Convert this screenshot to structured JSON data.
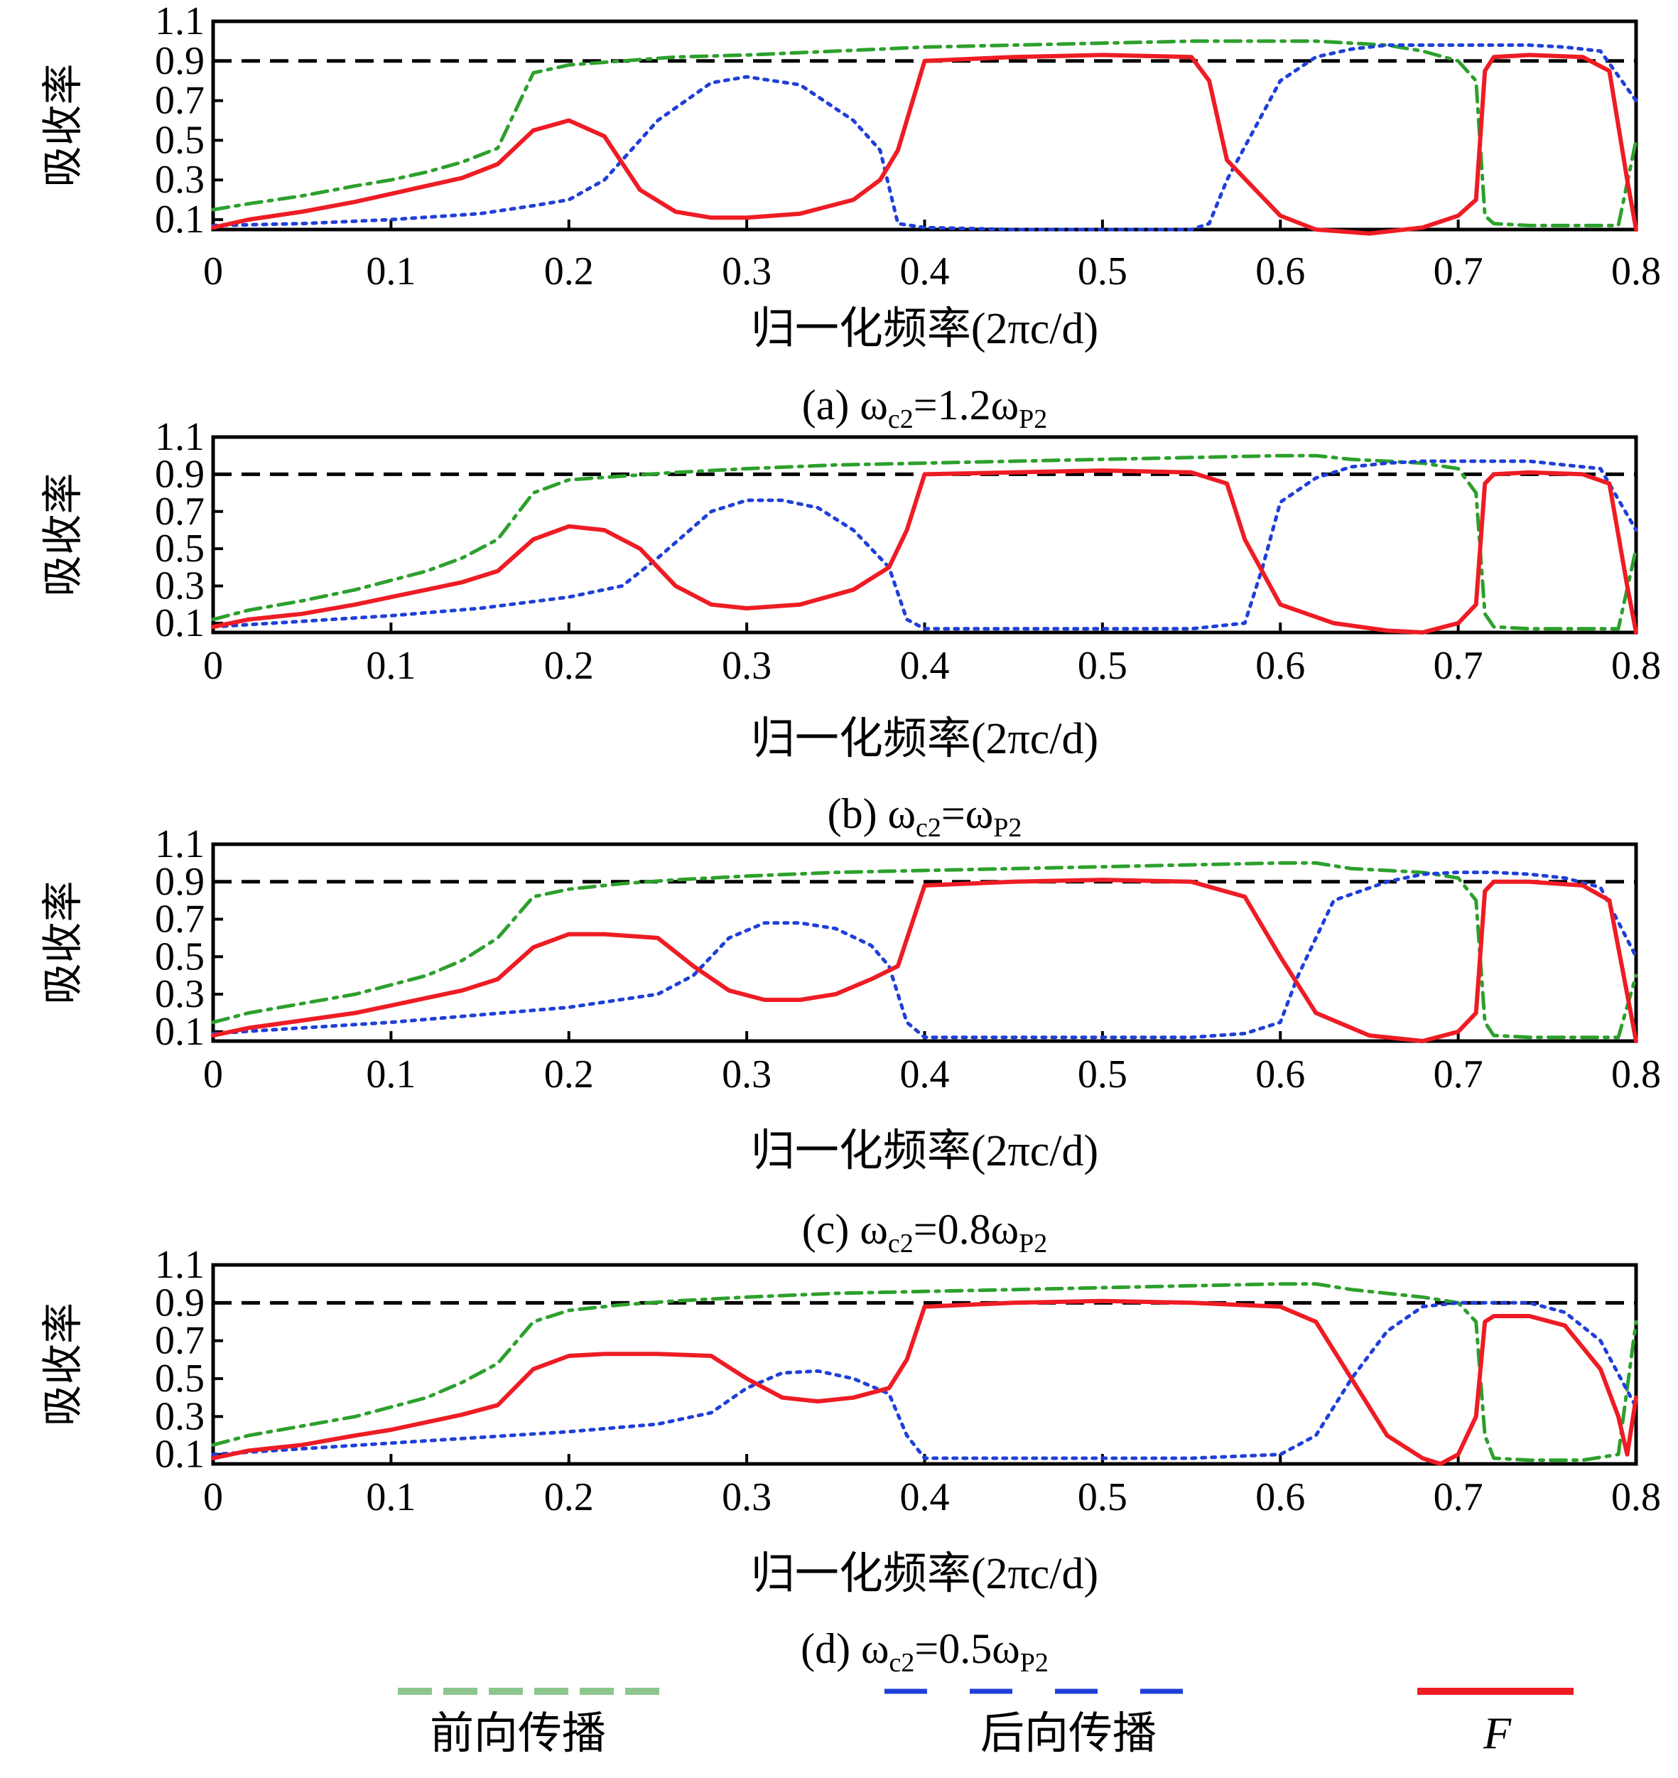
{
  "colors": {
    "forward": "#2ca02c",
    "backward": "#1f3fd8",
    "F": "#ee1c24",
    "reference": "#000000",
    "legend_forward": "#8cc68c",
    "legend_backward": "#1f3fd8",
    "legend_F": "#ee1c24"
  },
  "legend": {
    "forward_label": "前向传播",
    "backward_label": "后向传播",
    "F_label": "F"
  },
  "chart_data": [
    {
      "type": "line",
      "caption": "(a) ωc2=1.2ωP2",
      "caption_parts": {
        "prefix": "(a) ω",
        "sub1": "c2",
        "mid": "=1.2ω",
        "sub2": "P2"
      },
      "xlabel": "归一化频率(2πc/d)",
      "ylabel": "吸收率",
      "xlim": [
        0,
        0.8
      ],
      "ylim": [
        0.05,
        1.1
      ],
      "xticks": [
        "0",
        "0.1",
        "0.2",
        "0.3",
        "0.4",
        "0.5",
        "0.6",
        "0.7",
        "0.8"
      ],
      "yticks": [
        "0.1",
        "0.3",
        "0.5",
        "0.7",
        "0.9",
        "1.1"
      ],
      "reference_y": 0.9,
      "series": [
        {
          "name": "前向传播",
          "style": "dashdot",
          "color_key": "forward",
          "x": [
            0,
            0.02,
            0.05,
            0.08,
            0.1,
            0.12,
            0.14,
            0.16,
            0.18,
            0.2,
            0.23,
            0.26,
            0.3,
            0.35,
            0.4,
            0.45,
            0.5,
            0.55,
            0.6,
            0.62,
            0.64,
            0.66,
            0.68,
            0.7,
            0.71,
            0.715,
            0.72,
            0.74,
            0.77,
            0.79,
            0.8
          ],
          "y": [
            0.15,
            0.18,
            0.22,
            0.27,
            0.3,
            0.34,
            0.39,
            0.46,
            0.84,
            0.88,
            0.9,
            0.92,
            0.93,
            0.95,
            0.97,
            0.98,
            0.99,
            1.0,
            1.0,
            1.0,
            0.99,
            0.98,
            0.95,
            0.9,
            0.8,
            0.12,
            0.08,
            0.07,
            0.07,
            0.07,
            0.5
          ]
        },
        {
          "name": "后向传播",
          "style": "dotted",
          "color_key": "backward",
          "x": [
            0,
            0.05,
            0.1,
            0.15,
            0.18,
            0.2,
            0.22,
            0.25,
            0.28,
            0.3,
            0.33,
            0.36,
            0.375,
            0.385,
            0.4,
            0.45,
            0.5,
            0.55,
            0.56,
            0.57,
            0.6,
            0.62,
            0.64,
            0.66,
            0.68,
            0.7,
            0.72,
            0.74,
            0.76,
            0.78,
            0.8
          ],
          "y": [
            0.07,
            0.08,
            0.1,
            0.13,
            0.17,
            0.2,
            0.3,
            0.6,
            0.79,
            0.82,
            0.78,
            0.6,
            0.45,
            0.08,
            0.06,
            0.05,
            0.05,
            0.05,
            0.08,
            0.3,
            0.8,
            0.92,
            0.96,
            0.98,
            0.98,
            0.98,
            0.98,
            0.98,
            0.97,
            0.95,
            0.7
          ]
        },
        {
          "name": "F",
          "style": "solid",
          "color_key": "F",
          "x": [
            0,
            0.02,
            0.05,
            0.08,
            0.1,
            0.12,
            0.14,
            0.16,
            0.18,
            0.2,
            0.22,
            0.24,
            0.26,
            0.28,
            0.3,
            0.33,
            0.36,
            0.375,
            0.385,
            0.4,
            0.45,
            0.5,
            0.55,
            0.56,
            0.57,
            0.6,
            0.62,
            0.65,
            0.68,
            0.7,
            0.71,
            0.715,
            0.72,
            0.74,
            0.77,
            0.785,
            0.795,
            0.8
          ],
          "y": [
            0.06,
            0.1,
            0.14,
            0.19,
            0.23,
            0.27,
            0.31,
            0.38,
            0.55,
            0.6,
            0.52,
            0.25,
            0.14,
            0.11,
            0.11,
            0.13,
            0.2,
            0.3,
            0.45,
            0.9,
            0.92,
            0.93,
            0.92,
            0.8,
            0.4,
            0.12,
            0.05,
            0.03,
            0.06,
            0.12,
            0.2,
            0.85,
            0.92,
            0.93,
            0.92,
            0.85,
            0.3,
            0.05
          ]
        }
      ]
    },
    {
      "type": "line",
      "caption": "(b) ωc2=ωP2",
      "caption_parts": {
        "prefix": "(b) ω",
        "sub1": "c2",
        "mid": "=ω",
        "sub2": "P2"
      },
      "xlabel": "归一化频率(2πc/d)",
      "ylabel": "吸收率",
      "xlim": [
        0,
        0.8
      ],
      "ylim": [
        0.05,
        1.1
      ],
      "xticks": [
        "0",
        "0.1",
        "0.2",
        "0.3",
        "0.4",
        "0.5",
        "0.6",
        "0.7",
        "0.8"
      ],
      "yticks": [
        "0.1",
        "0.3",
        "0.5",
        "0.7",
        "0.9",
        "1.1"
      ],
      "reference_y": 0.9,
      "series": [
        {
          "name": "前向传播",
          "style": "dashdot",
          "color_key": "forward",
          "x": [
            0,
            0.02,
            0.05,
            0.08,
            0.1,
            0.12,
            0.14,
            0.16,
            0.18,
            0.2,
            0.23,
            0.26,
            0.3,
            0.35,
            0.4,
            0.45,
            0.5,
            0.55,
            0.6,
            0.62,
            0.64,
            0.66,
            0.68,
            0.7,
            0.71,
            0.715,
            0.72,
            0.74,
            0.77,
            0.79,
            0.8
          ],
          "y": [
            0.12,
            0.17,
            0.22,
            0.28,
            0.33,
            0.38,
            0.45,
            0.55,
            0.8,
            0.87,
            0.89,
            0.91,
            0.93,
            0.95,
            0.96,
            0.97,
            0.98,
            0.99,
            1.0,
            1.0,
            0.98,
            0.97,
            0.96,
            0.93,
            0.8,
            0.15,
            0.08,
            0.07,
            0.07,
            0.07,
            0.5
          ]
        },
        {
          "name": "后向传播",
          "style": "dotted",
          "color_key": "backward",
          "x": [
            0,
            0.05,
            0.1,
            0.15,
            0.2,
            0.23,
            0.25,
            0.28,
            0.3,
            0.32,
            0.34,
            0.36,
            0.38,
            0.39,
            0.4,
            0.45,
            0.5,
            0.55,
            0.58,
            0.59,
            0.6,
            0.62,
            0.64,
            0.66,
            0.68,
            0.7,
            0.72,
            0.74,
            0.76,
            0.78,
            0.8
          ],
          "y": [
            0.08,
            0.11,
            0.14,
            0.18,
            0.24,
            0.3,
            0.45,
            0.7,
            0.76,
            0.76,
            0.72,
            0.6,
            0.4,
            0.12,
            0.07,
            0.07,
            0.07,
            0.07,
            0.1,
            0.4,
            0.75,
            0.88,
            0.94,
            0.96,
            0.97,
            0.97,
            0.97,
            0.97,
            0.95,
            0.93,
            0.6
          ]
        },
        {
          "name": "F",
          "style": "solid",
          "color_key": "F",
          "x": [
            0,
            0.02,
            0.05,
            0.08,
            0.1,
            0.12,
            0.14,
            0.16,
            0.18,
            0.2,
            0.22,
            0.24,
            0.26,
            0.28,
            0.3,
            0.33,
            0.36,
            0.38,
            0.39,
            0.4,
            0.45,
            0.5,
            0.55,
            0.57,
            0.58,
            0.6,
            0.63,
            0.66,
            0.68,
            0.7,
            0.71,
            0.715,
            0.72,
            0.74,
            0.77,
            0.785,
            0.795,
            0.8
          ],
          "y": [
            0.08,
            0.12,
            0.15,
            0.2,
            0.24,
            0.28,
            0.32,
            0.38,
            0.55,
            0.62,
            0.6,
            0.5,
            0.3,
            0.2,
            0.18,
            0.2,
            0.28,
            0.4,
            0.6,
            0.9,
            0.91,
            0.92,
            0.91,
            0.85,
            0.55,
            0.2,
            0.1,
            0.06,
            0.05,
            0.1,
            0.2,
            0.85,
            0.9,
            0.91,
            0.9,
            0.85,
            0.3,
            0.05
          ]
        }
      ]
    },
    {
      "type": "line",
      "caption": "(c) ωc2=0.8ωP2",
      "caption_parts": {
        "prefix": "(c) ω",
        "sub1": "c2",
        "mid": "=0.8ω",
        "sub2": "P2"
      },
      "xlabel": "归一化频率(2πc/d)",
      "ylabel": "吸收率",
      "xlim": [
        0,
        0.8
      ],
      "ylim": [
        0.05,
        1.1
      ],
      "xticks": [
        "0",
        "0.1",
        "0.2",
        "0.3",
        "0.4",
        "0.5",
        "0.6",
        "0.7",
        "0.8"
      ],
      "yticks": [
        "0.1",
        "0.3",
        "0.5",
        "0.7",
        "0.9",
        "1.1"
      ],
      "reference_y": 0.9,
      "series": [
        {
          "name": "前向传播",
          "style": "dashdot",
          "color_key": "forward",
          "x": [
            0,
            0.02,
            0.05,
            0.08,
            0.1,
            0.12,
            0.14,
            0.16,
            0.18,
            0.2,
            0.23,
            0.26,
            0.3,
            0.35,
            0.4,
            0.45,
            0.5,
            0.55,
            0.6,
            0.62,
            0.64,
            0.66,
            0.68,
            0.7,
            0.71,
            0.715,
            0.72,
            0.74,
            0.77,
            0.79,
            0.8
          ],
          "y": [
            0.15,
            0.2,
            0.25,
            0.3,
            0.35,
            0.4,
            0.48,
            0.6,
            0.82,
            0.86,
            0.89,
            0.91,
            0.93,
            0.95,
            0.96,
            0.97,
            0.98,
            0.99,
            1.0,
            1.0,
            0.97,
            0.96,
            0.95,
            0.92,
            0.8,
            0.15,
            0.08,
            0.07,
            0.07,
            0.07,
            0.4
          ]
        },
        {
          "name": "后向传播",
          "style": "dotted",
          "color_key": "backward",
          "x": [
            0,
            0.05,
            0.1,
            0.15,
            0.2,
            0.25,
            0.27,
            0.29,
            0.31,
            0.33,
            0.35,
            0.37,
            0.38,
            0.39,
            0.4,
            0.45,
            0.5,
            0.55,
            0.58,
            0.6,
            0.61,
            0.63,
            0.66,
            0.68,
            0.7,
            0.72,
            0.74,
            0.76,
            0.78,
            0.8
          ],
          "y": [
            0.09,
            0.12,
            0.15,
            0.19,
            0.23,
            0.3,
            0.4,
            0.6,
            0.68,
            0.68,
            0.65,
            0.56,
            0.45,
            0.15,
            0.07,
            0.07,
            0.07,
            0.07,
            0.09,
            0.15,
            0.4,
            0.8,
            0.9,
            0.94,
            0.95,
            0.95,
            0.94,
            0.92,
            0.87,
            0.5
          ]
        },
        {
          "name": "F",
          "style": "solid",
          "color_key": "F",
          "x": [
            0,
            0.02,
            0.05,
            0.08,
            0.1,
            0.12,
            0.14,
            0.16,
            0.18,
            0.2,
            0.22,
            0.25,
            0.27,
            0.29,
            0.31,
            0.33,
            0.35,
            0.37,
            0.385,
            0.4,
            0.45,
            0.5,
            0.55,
            0.58,
            0.6,
            0.62,
            0.65,
            0.68,
            0.7,
            0.71,
            0.715,
            0.72,
            0.74,
            0.77,
            0.785,
            0.795,
            0.8
          ],
          "y": [
            0.08,
            0.12,
            0.16,
            0.2,
            0.24,
            0.28,
            0.32,
            0.38,
            0.55,
            0.62,
            0.62,
            0.6,
            0.45,
            0.32,
            0.27,
            0.27,
            0.3,
            0.38,
            0.45,
            0.88,
            0.9,
            0.91,
            0.9,
            0.82,
            0.5,
            0.2,
            0.08,
            0.05,
            0.1,
            0.2,
            0.85,
            0.9,
            0.9,
            0.88,
            0.8,
            0.3,
            0.05
          ]
        }
      ]
    },
    {
      "type": "line",
      "caption": "(d) ωc2=0.5ωP2",
      "caption_parts": {
        "prefix": "(d) ω",
        "sub1": "c2",
        "mid": "=0.5ω",
        "sub2": "P2"
      },
      "xlabel": "归一化频率(2πc/d)",
      "ylabel": "吸收率",
      "xlim": [
        0,
        0.8
      ],
      "ylim": [
        0.05,
        1.1
      ],
      "xticks": [
        "0",
        "0.1",
        "0.2",
        "0.3",
        "0.4",
        "0.5",
        "0.6",
        "0.7",
        "0.8"
      ],
      "yticks": [
        "0.1",
        "0.3",
        "0.5",
        "0.7",
        "0.9",
        "1.1"
      ],
      "reference_y": 0.9,
      "series": [
        {
          "name": "前向传播",
          "style": "dashdot",
          "color_key": "forward",
          "x": [
            0,
            0.02,
            0.05,
            0.08,
            0.1,
            0.12,
            0.14,
            0.16,
            0.18,
            0.2,
            0.23,
            0.26,
            0.3,
            0.35,
            0.4,
            0.45,
            0.5,
            0.55,
            0.6,
            0.62,
            0.64,
            0.66,
            0.68,
            0.7,
            0.71,
            0.715,
            0.72,
            0.74,
            0.77,
            0.79,
            0.8
          ],
          "y": [
            0.15,
            0.2,
            0.25,
            0.3,
            0.35,
            0.4,
            0.48,
            0.58,
            0.8,
            0.86,
            0.89,
            0.91,
            0.93,
            0.95,
            0.96,
            0.97,
            0.98,
            0.99,
            1.0,
            1.0,
            0.97,
            0.95,
            0.93,
            0.9,
            0.8,
            0.2,
            0.08,
            0.07,
            0.07,
            0.1,
            0.8
          ]
        },
        {
          "name": "后向传播",
          "style": "dotted",
          "color_key": "backward",
          "x": [
            0,
            0.05,
            0.1,
            0.15,
            0.2,
            0.25,
            0.28,
            0.3,
            0.32,
            0.34,
            0.36,
            0.38,
            0.39,
            0.4,
            0.45,
            0.5,
            0.55,
            0.6,
            0.62,
            0.64,
            0.66,
            0.68,
            0.7,
            0.72,
            0.74,
            0.76,
            0.78,
            0.8
          ],
          "y": [
            0.1,
            0.13,
            0.16,
            0.19,
            0.22,
            0.26,
            0.32,
            0.45,
            0.53,
            0.54,
            0.5,
            0.42,
            0.2,
            0.08,
            0.08,
            0.08,
            0.08,
            0.1,
            0.2,
            0.5,
            0.75,
            0.88,
            0.9,
            0.9,
            0.9,
            0.85,
            0.7,
            0.35
          ]
        },
        {
          "name": "F",
          "style": "solid",
          "color_key": "F",
          "x": [
            0,
            0.02,
            0.05,
            0.08,
            0.1,
            0.12,
            0.14,
            0.16,
            0.18,
            0.2,
            0.22,
            0.25,
            0.28,
            0.3,
            0.32,
            0.34,
            0.36,
            0.38,
            0.39,
            0.4,
            0.45,
            0.5,
            0.55,
            0.6,
            0.62,
            0.64,
            0.66,
            0.68,
            0.69,
            0.7,
            0.71,
            0.715,
            0.72,
            0.74,
            0.76,
            0.78,
            0.79,
            0.795,
            0.8
          ],
          "y": [
            0.08,
            0.12,
            0.15,
            0.2,
            0.23,
            0.27,
            0.31,
            0.36,
            0.55,
            0.62,
            0.63,
            0.63,
            0.62,
            0.5,
            0.4,
            0.38,
            0.4,
            0.45,
            0.6,
            0.88,
            0.9,
            0.91,
            0.9,
            0.88,
            0.8,
            0.5,
            0.2,
            0.08,
            0.05,
            0.1,
            0.3,
            0.8,
            0.83,
            0.83,
            0.78,
            0.55,
            0.3,
            0.1,
            0.4
          ]
        }
      ]
    }
  ]
}
